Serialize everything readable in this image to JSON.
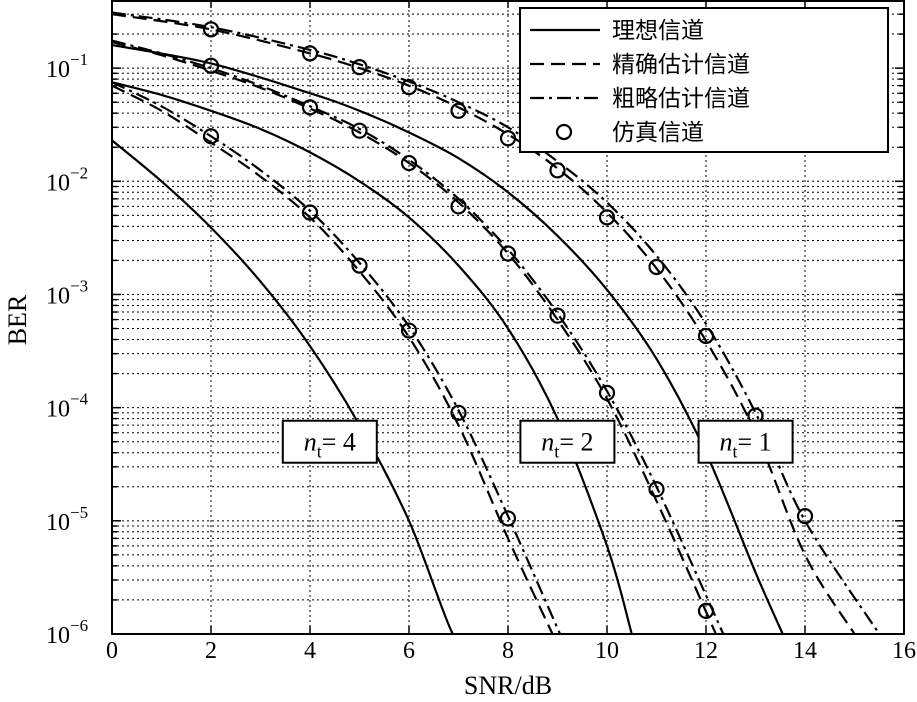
{
  "chart_data": {
    "type": "line",
    "title": "",
    "xlabel": "SNR/dB",
    "ylabel": "BER",
    "xlim": [
      0,
      16
    ],
    "ylim": [
      1e-06,
      0.4
    ],
    "yscale": "log",
    "grid": true,
    "legend_position": "top-right",
    "x_ticks": [
      0,
      2,
      4,
      6,
      8,
      10,
      12,
      14,
      16
    ],
    "y_ticks": [
      {
        "value": 0.1,
        "base": "10",
        "exp": "−1"
      },
      {
        "value": 0.01,
        "base": "10",
        "exp": "−2"
      },
      {
        "value": 0.001,
        "base": "10",
        "exp": "−3"
      },
      {
        "value": 0.0001,
        "base": "10",
        "exp": "−4"
      },
      {
        "value": 1e-05,
        "base": "10",
        "exp": "−5"
      },
      {
        "value": 1e-06,
        "base": "10",
        "exp": "−6"
      }
    ],
    "legend": [
      {
        "label": "理想信道",
        "style": "solid"
      },
      {
        "label": "精确估计信道",
        "style": "dashed"
      },
      {
        "label": "粗略估计信道",
        "style": "dashdot"
      },
      {
        "label": "仿真信道",
        "style": "marker"
      }
    ],
    "annotations": [
      {
        "prefix": "n",
        "sub": "t",
        "suffix": "= 4",
        "x": 4.4,
        "y": 5e-05
      },
      {
        "prefix": "n",
        "sub": "t",
        "suffix": "= 2",
        "x": 9.2,
        "y": 5e-05
      },
      {
        "prefix": "n",
        "sub": "t",
        "suffix": "= 1",
        "x": 12.8,
        "y": 5e-05
      }
    ],
    "series": [
      {
        "group": "nt=4",
        "style": "solid",
        "x": [
          0,
          1,
          2,
          3,
          4,
          5,
          6,
          7,
          7.5
        ],
        "y": [
          0.023,
          0.01,
          0.0039,
          0.0013,
          0.00035,
          7e-05,
          1e-05,
          8e-07,
          1e-06
        ]
      },
      {
        "group": "nt=4",
        "style": "dashed",
        "x": [
          0,
          1,
          2,
          3,
          4,
          5,
          6,
          7,
          8,
          8.9
        ],
        "y": [
          0.07,
          0.042,
          0.022,
          0.011,
          0.0048,
          0.0016,
          0.00042,
          7e-05,
          7e-06,
          1e-06
        ]
      },
      {
        "group": "nt=4",
        "style": "dashdot",
        "x": [
          0,
          1,
          2,
          3,
          4,
          5,
          6,
          7,
          8,
          9.05
        ],
        "y": [
          0.075,
          0.046,
          0.025,
          0.0125,
          0.0055,
          0.0019,
          0.00052,
          9.5e-05,
          1.1e-05,
          1e-06
        ]
      },
      {
        "group": "nt=4",
        "style": "marker",
        "x": [
          2,
          4,
          5,
          6,
          7,
          8
        ],
        "y": [
          0.025,
          0.0053,
          0.0018,
          0.00048,
          9e-05,
          1.05e-05
        ]
      },
      {
        "group": "nt=2",
        "style": "solid",
        "x": [
          0,
          1,
          2,
          3,
          4,
          5,
          6,
          7,
          8,
          9,
          10,
          10.5
        ],
        "y": [
          0.075,
          0.058,
          0.042,
          0.029,
          0.018,
          0.01,
          0.0048,
          0.0018,
          0.0005,
          8e-05,
          6e-06,
          1e-06
        ]
      },
      {
        "group": "nt=2",
        "style": "dashed",
        "x": [
          0,
          1,
          2,
          3,
          4,
          5,
          6,
          7,
          8,
          9,
          10,
          11,
          12.2
        ],
        "y": [
          0.17,
          0.13,
          0.095,
          0.067,
          0.044,
          0.027,
          0.0145,
          0.0065,
          0.0023,
          0.0006,
          0.00012,
          1.5e-05,
          1e-06
        ]
      },
      {
        "group": "nt=2",
        "style": "dashdot",
        "x": [
          0,
          1,
          2,
          3,
          4,
          5,
          6,
          7,
          8,
          9,
          10,
          11,
          12.35
        ],
        "y": [
          0.175,
          0.135,
          0.1,
          0.07,
          0.046,
          0.029,
          0.0155,
          0.007,
          0.0025,
          0.00068,
          0.00014,
          2e-05,
          1e-06
        ]
      },
      {
        "group": "nt=2",
        "style": "marker",
        "x": [
          2,
          4,
          5,
          6,
          7,
          8,
          9,
          10,
          11,
          12
        ],
        "y": [
          0.105,
          0.045,
          0.028,
          0.0145,
          0.006,
          0.0023,
          0.00065,
          0.000135,
          1.9e-05,
          1.6e-06
        ]
      },
      {
        "group": "nt=1",
        "style": "solid",
        "x": [
          0,
          2,
          4,
          5,
          6,
          7,
          8,
          9,
          10,
          11,
          12,
          13,
          13.55
        ],
        "y": [
          0.16,
          0.11,
          0.06,
          0.042,
          0.027,
          0.016,
          0.008,
          0.0033,
          0.0011,
          0.00027,
          4e-05,
          3.5e-06,
          1e-06
        ]
      },
      {
        "group": "nt=1",
        "style": "dashed",
        "x": [
          0,
          2,
          4,
          5,
          6,
          7,
          8,
          9,
          10,
          11,
          12,
          13,
          14,
          15
        ],
        "y": [
          0.3,
          0.22,
          0.135,
          0.1,
          0.07,
          0.045,
          0.026,
          0.013,
          0.0053,
          0.0017,
          0.00039,
          6e-05,
          5e-06,
          1e-06
        ]
      },
      {
        "group": "nt=1",
        "style": "dashdot",
        "x": [
          0,
          2,
          4,
          5,
          6,
          7,
          8,
          9,
          10,
          11,
          12,
          13,
          14,
          15.5
        ],
        "y": [
          0.31,
          0.23,
          0.145,
          0.108,
          0.076,
          0.05,
          0.03,
          0.015,
          0.0065,
          0.0022,
          0.00055,
          9e-05,
          1e-05,
          1e-06
        ]
      },
      {
        "group": "nt=1",
        "style": "marker",
        "x": [
          2,
          4,
          5,
          6,
          7,
          8,
          9,
          10,
          11,
          12,
          13,
          14
        ],
        "y": [
          0.22,
          0.135,
          0.102,
          0.068,
          0.042,
          0.024,
          0.0125,
          0.0048,
          0.00175,
          0.00043,
          8.5e-05,
          1.1e-05
        ]
      }
    ]
  }
}
